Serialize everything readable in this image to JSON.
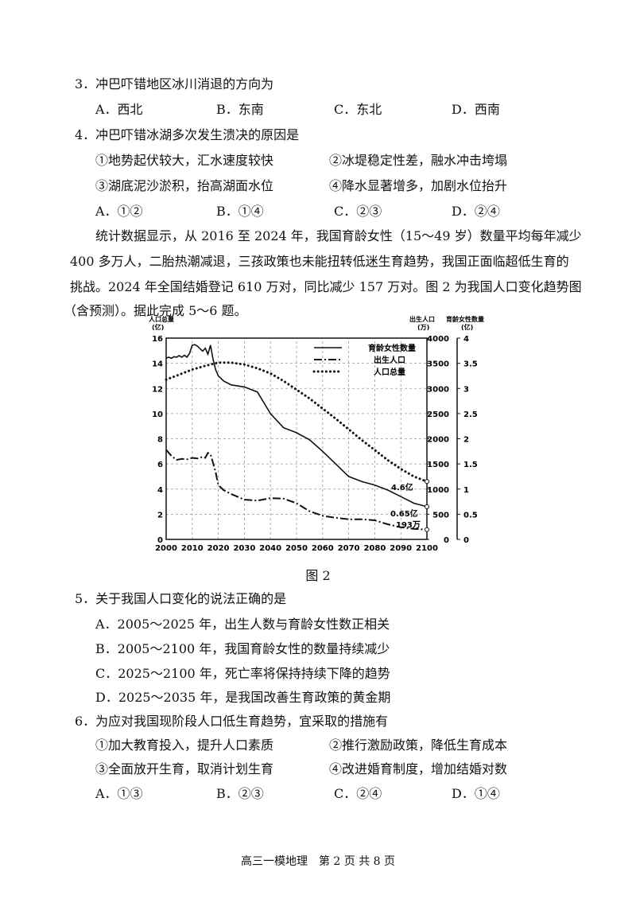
{
  "q3": {
    "stem": "3．冲巴吓错地区冰川消退的方向为",
    "options": [
      "A．西北",
      "B．东南",
      "C．东北",
      "D．西南"
    ]
  },
  "q4": {
    "stem": "4．冲巴吓错冰湖多次发生溃决的原因是",
    "statements": [
      "①地势起伏较大，汇水速度较快",
      "②冰堤稳定性差，融水冲击垮塌",
      "③湖底泥沙淤积，抬高湖面水位",
      "④降水显著增多，加剧水位抬升"
    ],
    "options": [
      "A．①②",
      "B．①④",
      "C．②③",
      "D．②④"
    ]
  },
  "passage": [
    "统计数据显示，从 2016 至 2024 年，我国育龄女性（15～49 岁）数量平均每年减少",
    "400 多万人，二胎热潮减退，三孩政策也未能扭转低迷生育趋势，我国正面临超低生育的",
    "挑战。2024 年全国结婚登记 610 万对，同比减少 157 万对。图 2 为我国人口变化趋势图",
    "（含预测）。据此完成 5～6 题。"
  ],
  "figure_caption": "图 2",
  "q5": {
    "stem": "5．关于我国人口变化的说法正确的是",
    "options": [
      "A．2005～2025 年，出生人数与育龄女性数正相关",
      "B．2005～2100 年，我国育龄女性的数量持续减少",
      "C．2025～2100 年，死亡率将保持持续下降的趋势",
      "D．2025～2035 年，是我国改善生育政策的黄金期"
    ]
  },
  "q6": {
    "stem": "6．为应对我国现阶段人口低生育趋势，宜采取的措施有",
    "statements": [
      "①加大教育投入，提升人口素质",
      "②推行激励政策，降低生育成本",
      "③全面放开生育，取消计划生育",
      "④改进婚育制度，增加结婚对数"
    ],
    "options": [
      "A．①③",
      "B．②③",
      "C．②④",
      "D．①④"
    ]
  },
  "footer": "高三一模地理　第 2 页 共 8 页",
  "chart_data": {
    "type": "line",
    "title": "",
    "left_axis": {
      "label_line1": "人口总量",
      "label_line2": "(亿)",
      "ticks": [
        0,
        2,
        4,
        6,
        8,
        10,
        12,
        14,
        16
      ],
      "range": [
        0,
        16
      ]
    },
    "right_axis_1": {
      "label_line1": "出生人口",
      "label_line2": "(万)",
      "ticks": [
        0,
        500,
        1000,
        1500,
        2000,
        2500,
        3000,
        3500,
        4000
      ],
      "range": [
        0,
        4000
      ]
    },
    "right_axis_2": {
      "label_line1": "育龄女性数量",
      "label_line2": "(亿)",
      "ticks": [
        "0",
        "0.5",
        "1",
        "1.5",
        "2",
        "2.5",
        "3",
        "3.5",
        "4"
      ],
      "range": [
        0,
        4
      ]
    },
    "x": {
      "ticks": [
        2000,
        2010,
        2020,
        2030,
        2040,
        2050,
        2060,
        2070,
        2080,
        2090,
        2100
      ],
      "range": [
        2000,
        2100
      ]
    },
    "legend": {
      "placement": "top-right",
      "entries": [
        "育龄女性数量",
        "出生人口",
        "人口总量"
      ]
    },
    "series": [
      {
        "name": "育龄女性数量",
        "style": "solid",
        "unit": "亿",
        "points": [
          [
            2000,
            3.6
          ],
          [
            2001,
            3.62
          ],
          [
            2002,
            3.6
          ],
          [
            2003,
            3.63
          ],
          [
            2004,
            3.62
          ],
          [
            2005,
            3.65
          ],
          [
            2006,
            3.62
          ],
          [
            2007,
            3.66
          ],
          [
            2008,
            3.62
          ],
          [
            2009,
            3.7
          ],
          [
            2010,
            3.86
          ],
          [
            2011,
            3.87
          ],
          [
            2012,
            3.84
          ],
          [
            2013,
            3.79
          ],
          [
            2014,
            3.74
          ],
          [
            2015,
            3.8
          ],
          [
            2016,
            3.68
          ],
          [
            2017,
            3.86
          ],
          [
            2018,
            3.58
          ],
          [
            2019,
            3.37
          ],
          [
            2020,
            3.25
          ],
          [
            2022,
            3.15
          ],
          [
            2025,
            3.07
          ],
          [
            2030,
            3.03
          ],
          [
            2035,
            2.93
          ],
          [
            2040,
            2.5
          ],
          [
            2045,
            2.22
          ],
          [
            2050,
            2.12
          ],
          [
            2055,
            1.98
          ],
          [
            2060,
            1.75
          ],
          [
            2065,
            1.5
          ],
          [
            2070,
            1.25
          ],
          [
            2075,
            1.15
          ],
          [
            2080,
            1.08
          ],
          [
            2085,
            0.98
          ],
          [
            2090,
            0.85
          ],
          [
            2095,
            0.72
          ],
          [
            2100,
            0.65
          ]
        ]
      },
      {
        "name": "出生人口",
        "style": "dashdot",
        "unit": "万",
        "points": [
          [
            2000,
            1780
          ],
          [
            2002,
            1660
          ],
          [
            2004,
            1580
          ],
          [
            2006,
            1600
          ],
          [
            2008,
            1590
          ],
          [
            2010,
            1620
          ],
          [
            2012,
            1610
          ],
          [
            2014,
            1640
          ],
          [
            2015,
            1620
          ],
          [
            2016,
            1720
          ],
          [
            2017,
            1690
          ],
          [
            2018,
            1520
          ],
          [
            2019,
            1330
          ],
          [
            2020,
            1080
          ],
          [
            2022,
            980
          ],
          [
            2025,
            900
          ],
          [
            2030,
            790
          ],
          [
            2035,
            770
          ],
          [
            2040,
            820
          ],
          [
            2045,
            810
          ],
          [
            2050,
            720
          ],
          [
            2055,
            560
          ],
          [
            2060,
            470
          ],
          [
            2065,
            430
          ],
          [
            2070,
            400
          ],
          [
            2075,
            400
          ],
          [
            2080,
            380
          ],
          [
            2085,
            300
          ],
          [
            2090,
            240
          ],
          [
            2095,
            210
          ],
          [
            2100,
            193
          ]
        ]
      },
      {
        "name": "人口总量",
        "style": "dotted",
        "unit": "亿",
        "points": [
          [
            2000,
            12.7
          ],
          [
            2005,
            13.1
          ],
          [
            2010,
            13.5
          ],
          [
            2015,
            13.8
          ],
          [
            2020,
            14.05
          ],
          [
            2025,
            14.05
          ],
          [
            2030,
            13.9
          ],
          [
            2035,
            13.6
          ],
          [
            2040,
            13.2
          ],
          [
            2045,
            12.6
          ],
          [
            2050,
            11.9
          ],
          [
            2055,
            11.2
          ],
          [
            2060,
            10.4
          ],
          [
            2065,
            9.6
          ],
          [
            2070,
            8.75
          ],
          [
            2075,
            7.9
          ],
          [
            2080,
            7.1
          ],
          [
            2085,
            6.3
          ],
          [
            2090,
            5.6
          ],
          [
            2095,
            5.0
          ],
          [
            2100,
            4.6
          ]
        ]
      }
    ],
    "annotations": [
      "4.6亿",
      "0.65亿",
      "193万"
    ]
  }
}
